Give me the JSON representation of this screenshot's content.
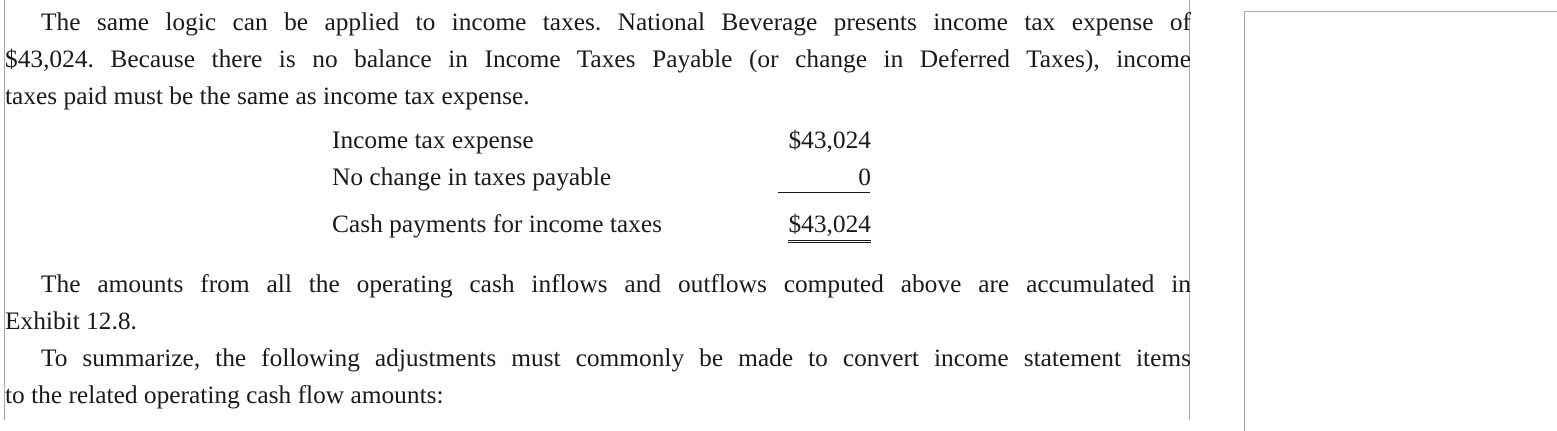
{
  "paragraphs": {
    "p1": [
      "The same logic can be applied to income taxes. National Beverage presents income tax expense of",
      "$43,024. Because there is no balance in Income Taxes Payable (or change in Deferred Taxes), income",
      "taxes paid must be the same as income tax expense."
    ],
    "p2": [
      "The amounts from all the operating cash inflows and outflows computed above are accumulated in",
      "Exhibit 12.8."
    ],
    "p3": [
      "To summarize, the following adjustments must commonly be made to convert income statement items",
      "to the related operating cash flow amounts:"
    ]
  },
  "calculation": {
    "rows": [
      {
        "label": "Income tax expense",
        "value": "$43,024"
      },
      {
        "label": "No change in taxes payable",
        "value": "0"
      }
    ],
    "total": {
      "label": "Cash payments for income taxes",
      "value": "$43,024"
    }
  }
}
